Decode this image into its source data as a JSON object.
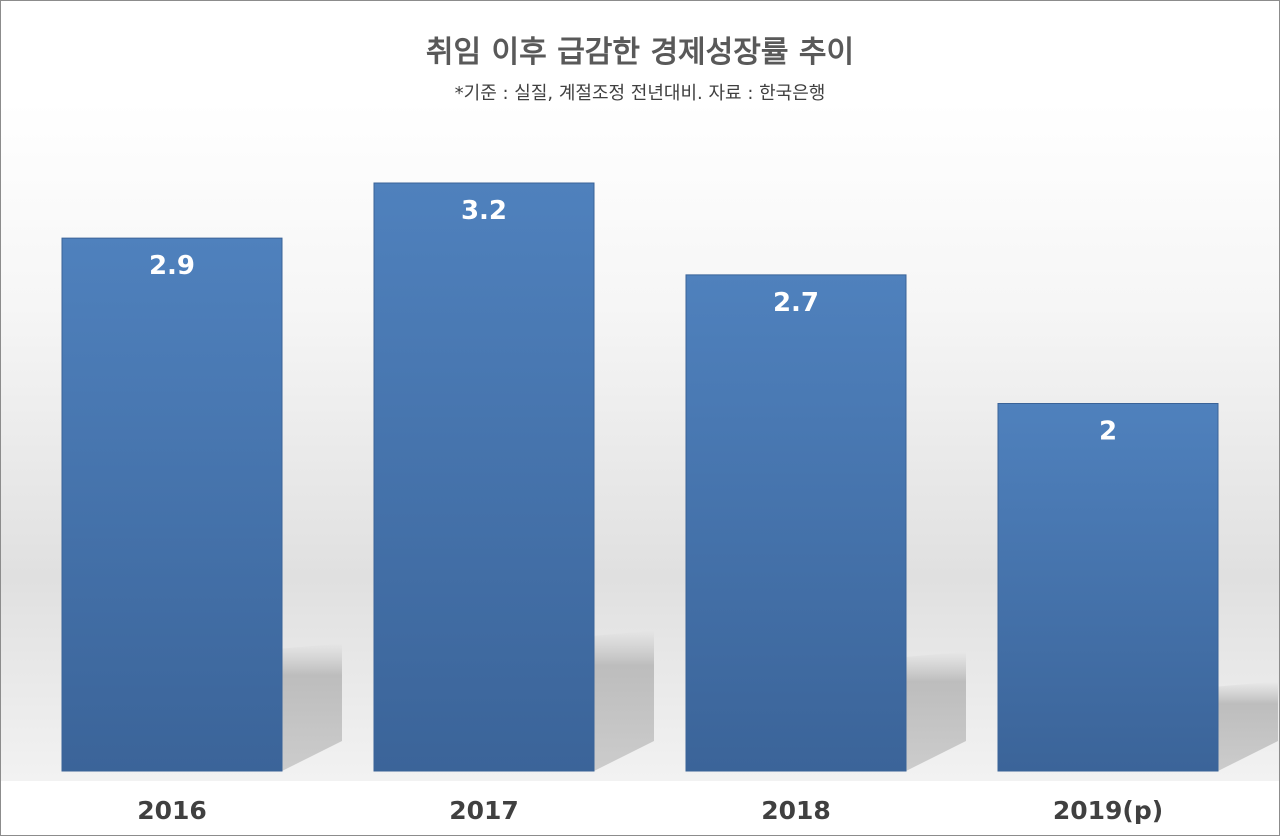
{
  "chart_data": {
    "type": "bar",
    "title": "취임 이후 급감한 경제성장률 추이",
    "subtitle": "*기준 : 실질, 계절조정 전년대비. 자료 : 한국은행",
    "categories": [
      "2016",
      "2017",
      "2018",
      "2019(p)"
    ],
    "values": [
      2.9,
      3.2,
      2.7,
      2
    ],
    "value_labels": [
      "2.9",
      "3.2",
      "2.7",
      "2"
    ],
    "xlabel": "",
    "ylabel": "",
    "ylim": [
      0,
      3.2
    ],
    "grid": false,
    "legend": "none",
    "colors": {
      "bar_top": "#4F81BD",
      "bar_bottom": "#3B6499",
      "value_label": "#ffffff",
      "category_label": "#404040",
      "title": "#595959"
    }
  }
}
